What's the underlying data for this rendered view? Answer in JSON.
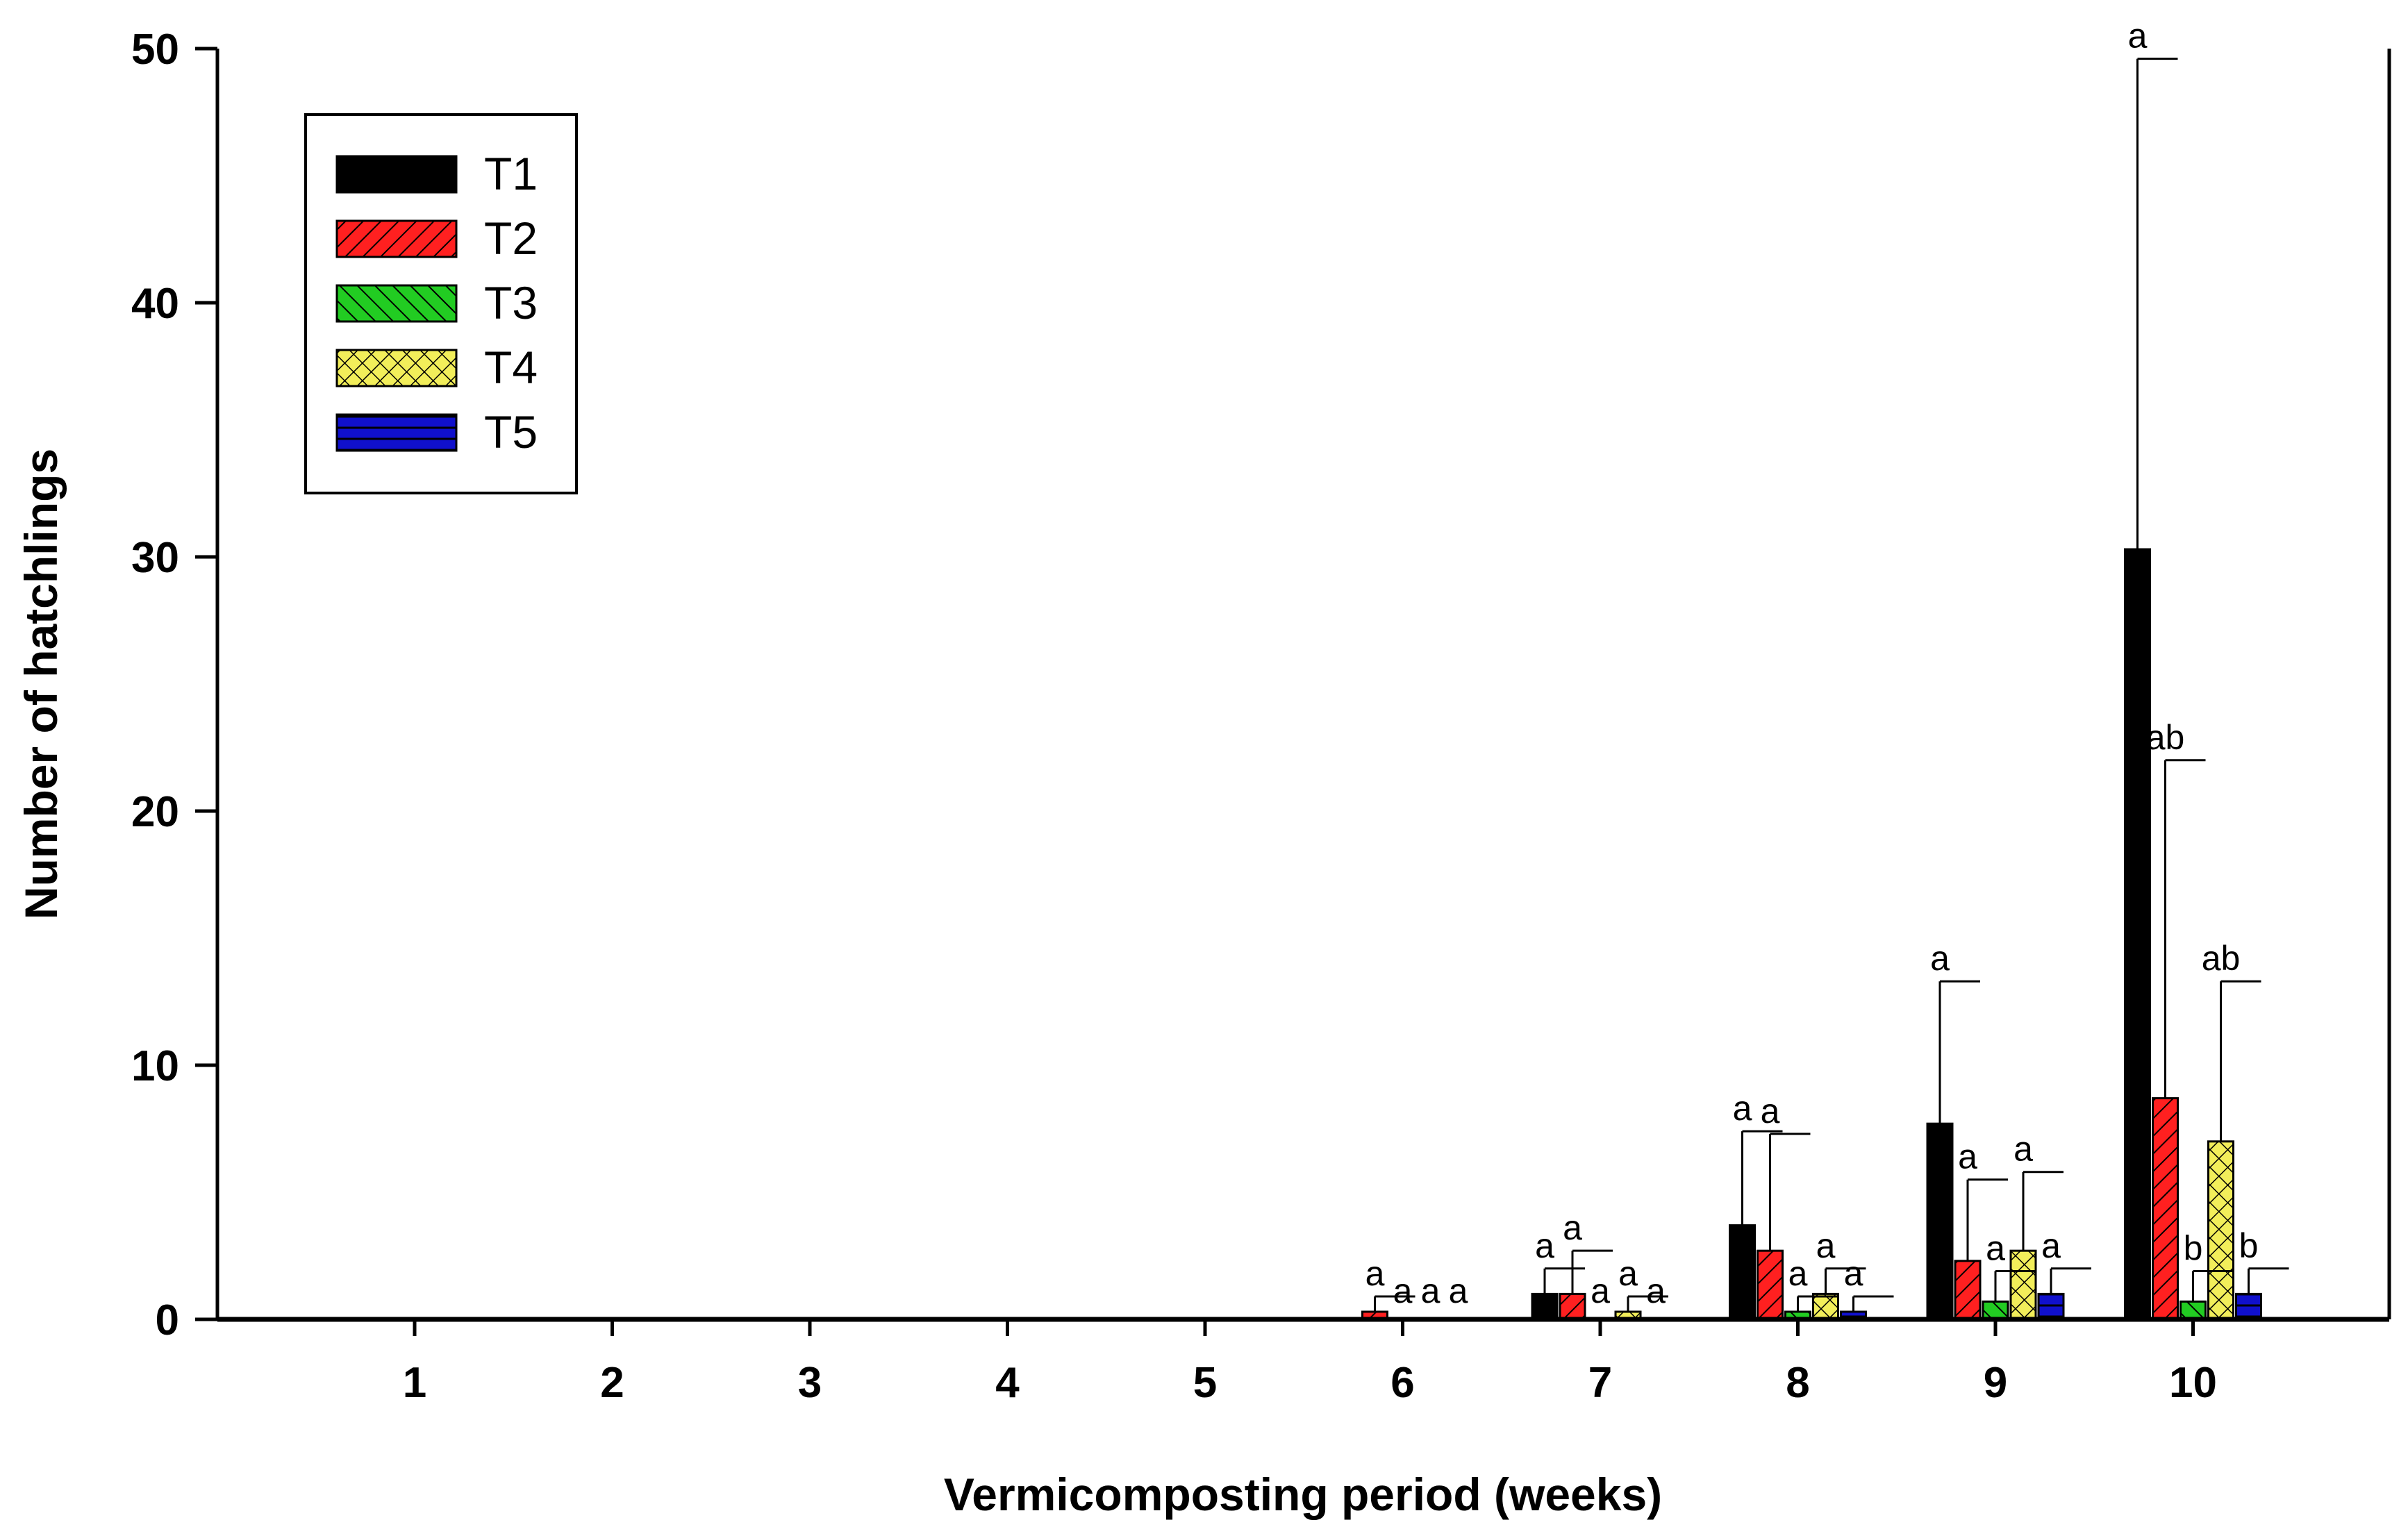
{
  "chart_data": {
    "type": "bar",
    "title": "",
    "xlabel": "Vermicomposting period (weeks)",
    "ylabel": "Number of hatchlings",
    "categories": [
      "1",
      "2",
      "3",
      "4",
      "5",
      "6",
      "7",
      "8",
      "9",
      "10"
    ],
    "ylim": [
      0,
      50
    ],
    "yticks": [
      0,
      10,
      20,
      30,
      40,
      50
    ],
    "grid": false,
    "legend_position": "top-left",
    "series": [
      {
        "name": "T1",
        "color": "#000000",
        "pattern": "solid",
        "values": [
          0,
          0,
          0,
          0,
          0,
          0,
          1,
          3.7,
          7.7,
          30.3
        ],
        "errors": [
          0,
          0,
          0,
          0,
          0,
          0,
          1,
          3.7,
          5.6,
          19.3
        ],
        "letters": [
          "",
          "",
          "",
          "",
          "",
          "",
          "a",
          "a",
          "a",
          "a"
        ]
      },
      {
        "name": "T2",
        "color": "#ff2020",
        "pattern": "diagonal-up",
        "values": [
          0,
          0,
          0,
          0,
          0,
          0.3,
          1,
          2.7,
          2.3,
          8.7
        ],
        "errors": [
          0,
          0,
          0,
          0,
          0,
          0.6,
          1.7,
          4.6,
          3.2,
          13.3
        ],
        "letters": [
          "",
          "",
          "",
          "",
          "",
          "a",
          "a",
          "a",
          "a",
          "ab"
        ]
      },
      {
        "name": "T3",
        "color": "#22cc22",
        "pattern": "diagonal-down",
        "values": [
          0,
          0,
          0,
          0,
          0,
          0,
          0,
          0.3,
          0.7,
          0.7
        ],
        "errors": [
          0,
          0,
          0,
          0,
          0,
          0,
          0,
          0.6,
          1.2,
          1.2
        ],
        "letters": [
          "",
          "",
          "",
          "",
          "",
          "a",
          "a",
          "a",
          "a",
          "b"
        ]
      },
      {
        "name": "T4",
        "color": "#f2ee5a",
        "pattern": "crosshatch",
        "values": [
          0,
          0,
          0,
          0,
          0,
          0,
          0.3,
          1,
          2.7,
          7
        ],
        "errors": [
          0,
          0,
          0,
          0,
          0,
          0,
          0.6,
          1,
          3.1,
          6.3
        ],
        "letters": [
          "",
          "",
          "",
          "",
          "",
          "a",
          "a",
          "a",
          "a",
          "ab"
        ]
      },
      {
        "name": "T5",
        "color": "#1010cc",
        "pattern": "horizontal",
        "values": [
          0,
          0,
          0,
          0,
          0,
          0,
          0,
          0.3,
          1,
          1
        ],
        "errors": [
          0,
          0,
          0,
          0,
          0,
          0,
          0,
          0.6,
          1,
          1
        ],
        "letters": [
          "",
          "",
          "",
          "",
          "",
          "a",
          "a",
          "a",
          "a",
          "b"
        ]
      }
    ]
  }
}
